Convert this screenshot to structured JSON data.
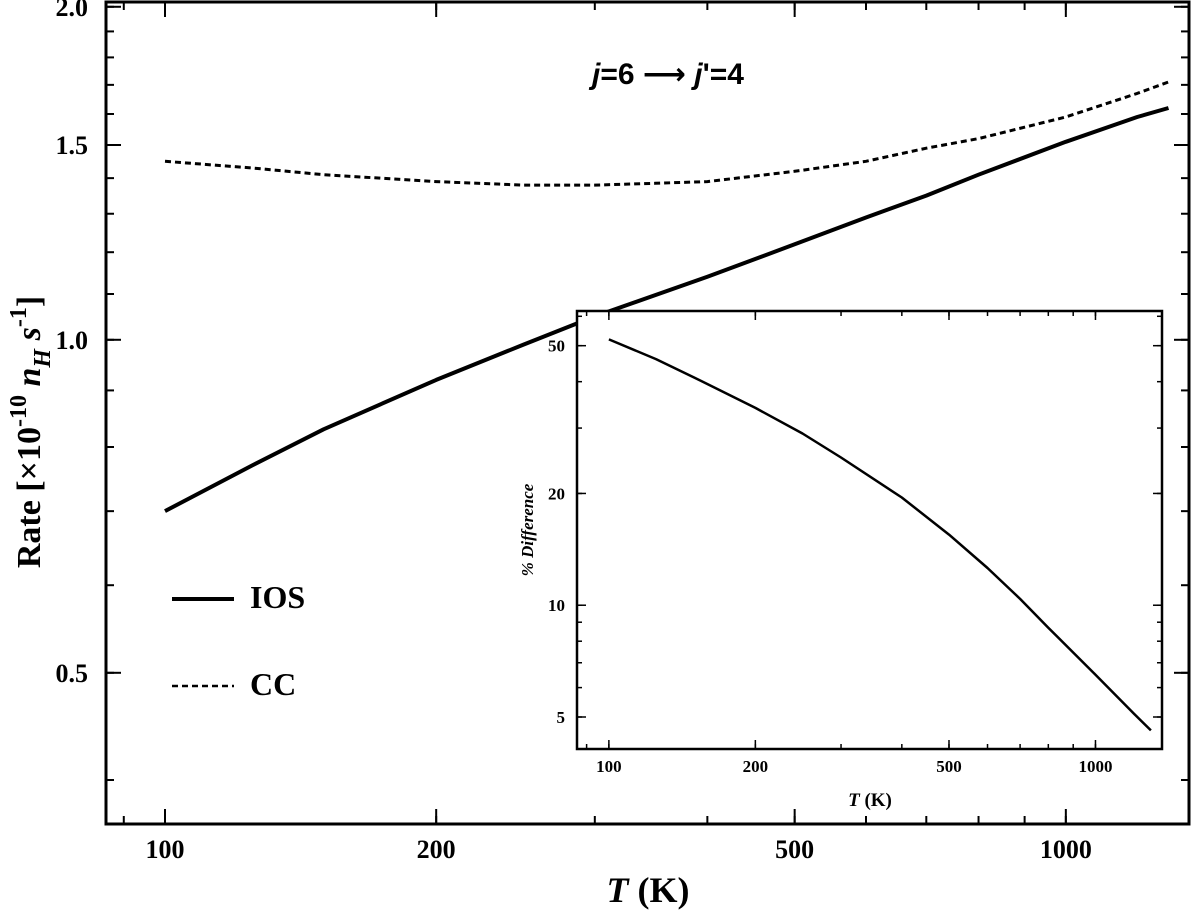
{
  "chart_data": [
    {
      "type": "line",
      "title": "j=6 ⟶ j'=4",
      "title_parts": {
        "j1": "j",
        "eq1": "=6 ⟶ ",
        "j2": "j",
        "eq2": "'=4"
      },
      "xlabel": {
        "var": "T",
        "unit": " (K)"
      },
      "ylabel": {
        "main": "Rate [×10",
        "exp": "-10",
        "nvar": " n",
        "nsub": "H",
        "svar": " s",
        "sexp": "-1",
        "close": "]"
      },
      "xscale": "log",
      "yscale": "log",
      "xlim": [
        86,
        1370
      ],
      "ylim": [
        0.365,
        2.02
      ],
      "xticks": [
        {
          "v": 100,
          "label": "100"
        },
        {
          "v": 200,
          "label": "200"
        },
        {
          "v": 500,
          "label": "500"
        },
        {
          "v": 1000,
          "label": "1000"
        }
      ],
      "yticks": [
        {
          "v": 0.5,
          "label": "0.5"
        },
        {
          "v": 1.0,
          "label": "1.0"
        },
        {
          "v": 1.5,
          "label": "1.5"
        },
        {
          "v": 2.0,
          "label": "2.0"
        }
      ],
      "legend_position": "bottom-left",
      "series": [
        {
          "name": "IOS",
          "style": "solid",
          "x": [
            100,
            125,
            150,
            200,
            250,
            300,
            400,
            500,
            600,
            700,
            800,
            1000,
            1200,
            1300
          ],
          "y": [
            0.7,
            0.77,
            0.83,
            0.92,
            0.99,
            1.05,
            1.14,
            1.22,
            1.29,
            1.35,
            1.41,
            1.51,
            1.59,
            1.62
          ]
        },
        {
          "name": "CC",
          "style": "dashed",
          "x": [
            100,
            125,
            150,
            200,
            250,
            300,
            350,
            400,
            500,
            600,
            700,
            800,
            1000,
            1200,
            1300
          ],
          "y": [
            1.45,
            1.43,
            1.41,
            1.39,
            1.38,
            1.38,
            1.385,
            1.39,
            1.42,
            1.45,
            1.49,
            1.52,
            1.59,
            1.67,
            1.71
          ]
        }
      ]
    },
    {
      "type": "line",
      "role": "inset",
      "xlabel": {
        "var": "T",
        "unit": " (K)"
      },
      "ylabel": "% Difference",
      "xscale": "log",
      "yscale": "log",
      "xlim": [
        86,
        1370
      ],
      "ylim": [
        4.1,
        62
      ],
      "xticks": [
        {
          "v": 100,
          "label": "100"
        },
        {
          "v": 200,
          "label": "200"
        },
        {
          "v": 500,
          "label": "500"
        },
        {
          "v": 1000,
          "label": "1000"
        }
      ],
      "yticks": [
        {
          "v": 5,
          "label": "5"
        },
        {
          "v": 10,
          "label": "10"
        },
        {
          "v": 20,
          "label": "20"
        },
        {
          "v": 50,
          "label": "50"
        }
      ],
      "series": [
        {
          "style": "solid",
          "x": [
            100,
            125,
            150,
            200,
            250,
            300,
            400,
            500,
            600,
            700,
            800,
            1000,
            1200,
            1300
          ],
          "y": [
            52,
            46,
            41,
            34,
            29,
            25,
            19.5,
            15.5,
            12.6,
            10.4,
            8.7,
            6.5,
            5.1,
            4.6
          ]
        }
      ]
    }
  ]
}
